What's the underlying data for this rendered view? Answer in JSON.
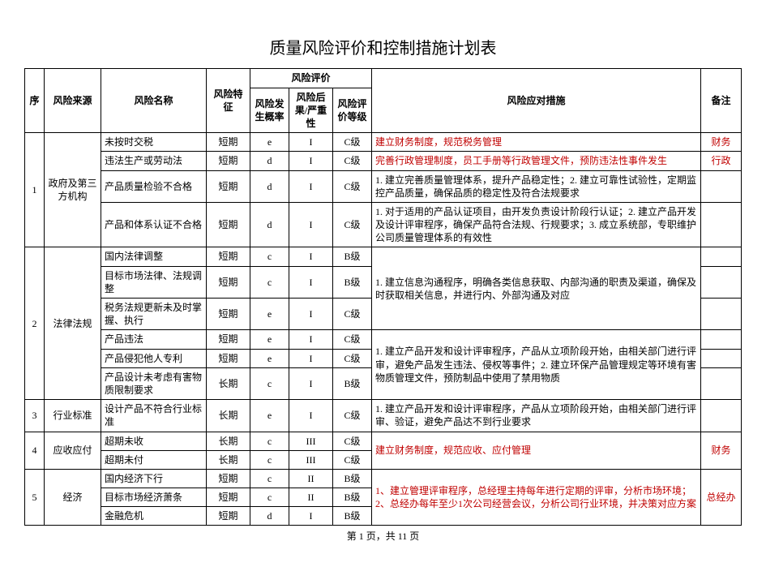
{
  "title": "质量风险评价和控制措施计划表",
  "pager": "第 1 页，共 11 页",
  "headers": {
    "seq": "序",
    "source": "风险来源",
    "name": "风险名称",
    "feature": "风险特征",
    "eval_group": "风险评价",
    "eval_p": "风险发生概率",
    "eval_s": "风险后果/严重性",
    "eval_g": "风险评价等级",
    "measure": "风险应对措施",
    "note": "备注"
  },
  "groups": [
    {
      "seq": "1",
      "source": "政府及第三方机构",
      "rows": [
        {
          "name": "未按时交税",
          "feature": "短期",
          "p": "e",
          "s": "I",
          "g": "C级",
          "measure": "建立财务制度，规范税务管理",
          "note": "财务",
          "red": true,
          "noteRed": true
        },
        {
          "name": "违法生产或劳动法",
          "feature": "短期",
          "p": "d",
          "s": "I",
          "g": "C级",
          "measure": "完善行政管理制度，员工手册等行政管理文件，预防违法性事件发生",
          "note": "行政",
          "red": true,
          "noteRed": true
        },
        {
          "name": "产品质量检验不合格",
          "feature": "短期",
          "p": "d",
          "s": "I",
          "g": "C级",
          "measure": "1. 建立完善质量管理体系，提升产品稳定性；2. 建立可靠性试验性，定期监控产品质量，确保品质的稳定性及符合法规要求",
          "note": ""
        },
        {
          "name": "产品和体系认证不合格",
          "feature": "短期",
          "p": "d",
          "s": "I",
          "g": "C级",
          "measure": "1. 对于适用的产品认证项目，由开发负责设计阶段行认证；2. 建立产品开发及设计评审程序，确保产品符合法规、行规要求；3. 成立系统部，专职维护公司质量管理体系的有效性",
          "note": ""
        }
      ]
    },
    {
      "seq": "2",
      "source": "法律法规",
      "rows": [
        {
          "name": "国内法律调整",
          "feature": "短期",
          "p": "c",
          "s": "I",
          "g": "B级",
          "note": "",
          "measure_group": {
            "span": 3,
            "text": "1. 建立信息沟通程序，明确各类信息获取、内部沟通的职责及渠道，确保及时获取相关信息，并进行内、外部沟通及对应",
            "red": false
          }
        },
        {
          "name": "目标市场法律、法规调整",
          "feature": "短期",
          "p": "c",
          "s": "I",
          "g": "B级",
          "note": ""
        },
        {
          "name": "税务法规更新未及时掌握、执行",
          "feature": "短期",
          "p": "e",
          "s": "I",
          "g": "C级",
          "note": ""
        },
        {
          "name": "产品违法",
          "feature": "短期",
          "p": "e",
          "s": "I",
          "g": "C级",
          "note": "",
          "measure_group": {
            "span": 3,
            "text": "1. 建立产品开发和设计评审程序，产品从立项阶段开始，由相关部门进行评审，避免产品发生违法、侵权等事件；2. 建立环保产品管理规定等环境有害物质管理文件，预防制品中使用了禁用物质",
            "red": false
          }
        },
        {
          "name": "产品侵犯他人专利",
          "feature": "短期",
          "p": "e",
          "s": "I",
          "g": "C级",
          "note": ""
        },
        {
          "name": "产品设计未考虑有害物质限制要求",
          "feature": "长期",
          "p": "c",
          "s": "I",
          "g": "B级",
          "note": ""
        }
      ]
    },
    {
      "seq": "3",
      "source": "行业标准",
      "rows": [
        {
          "name": "设计产品不符合行业标准",
          "feature": "长期",
          "p": "e",
          "s": "I",
          "g": "C级",
          "measure": "1. 建立产品开发和设计评审程序，产品从立项阶段开始，由相关部门进行评审、验证，避免产品达不到行业要求",
          "note": ""
        }
      ]
    },
    {
      "seq": "4",
      "source": "应收应付",
      "rows": [
        {
          "name": "超期未收",
          "feature": "长期",
          "p": "c",
          "s": "III",
          "g": "C级",
          "note": "",
          "measure_group": {
            "span": 2,
            "text": "建立财务制度，规范应收、应付管理",
            "red": true
          },
          "note_group": {
            "span": 2,
            "text": "财务",
            "red": true
          }
        },
        {
          "name": "超期未付",
          "feature": "长期",
          "p": "c",
          "s": "III",
          "g": "C级"
        }
      ]
    },
    {
      "seq": "5",
      "source": "经济",
      "rows": [
        {
          "name": "国内经济下行",
          "feature": "短期",
          "p": "c",
          "s": "II",
          "g": "B级",
          "measure_group": {
            "span": 3,
            "text": "1、建立管理评审程序，总经理主持每年进行定期的评审，分析市场环境；2、总经办每年至少1次公司经营会议，分析公司行业环境，并决策对应方案",
            "red": true
          },
          "note_group": {
            "span": 3,
            "text": "总经办",
            "red": true
          }
        },
        {
          "name": "目标市场经济萧条",
          "feature": "短期",
          "p": "c",
          "s": "II",
          "g": "B级"
        },
        {
          "name": "金融危机",
          "feature": "短期",
          "p": "d",
          "s": "I",
          "g": "B级"
        }
      ]
    }
  ]
}
